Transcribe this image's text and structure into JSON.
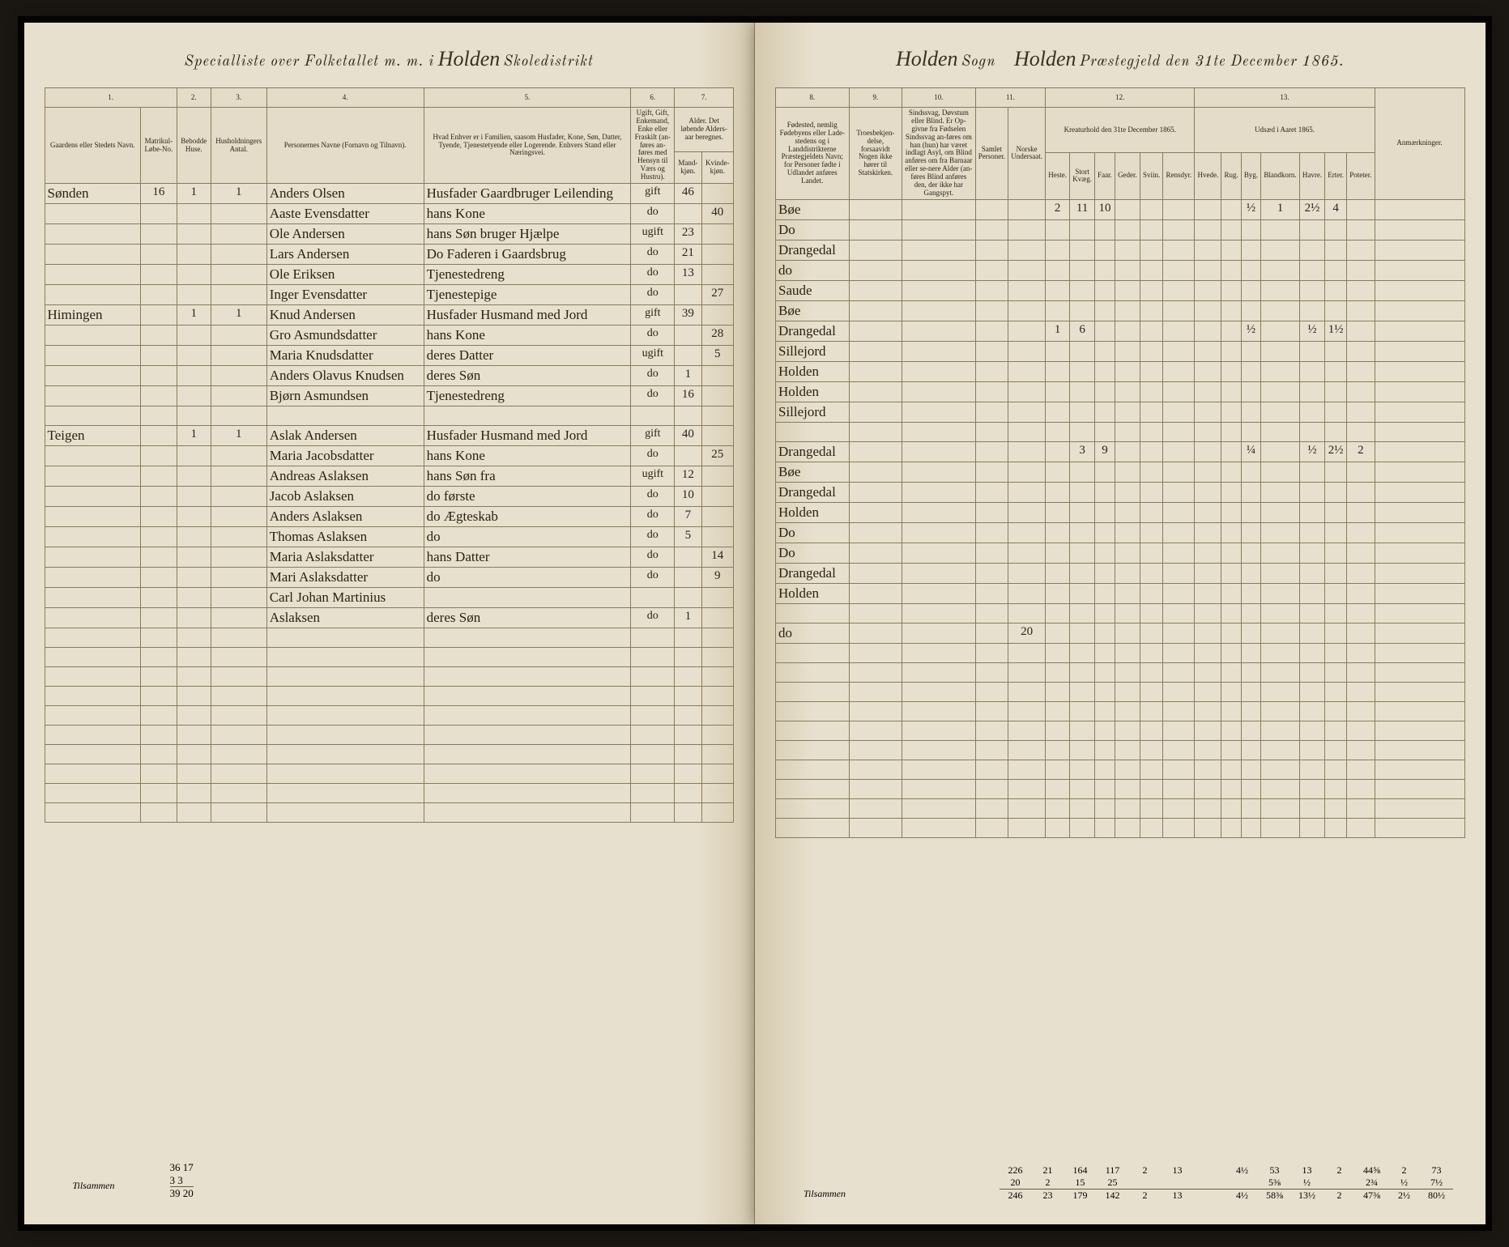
{
  "header": {
    "left_prefix": "Specialliste over Folketallet m. m. i",
    "left_district": "Holden",
    "left_suffix": "Skoledistrikt",
    "right_sogn": "Holden",
    "right_sogn_label": "Sogn",
    "right_gjeld": "Holden",
    "right_suffix": "Præstegjeld den 31te December 1865."
  },
  "columns_left": {
    "c1": "1.",
    "c2": "2.",
    "c3": "3.",
    "c4": "4.",
    "c5": "5.",
    "c6": "6.",
    "c7": "7.",
    "h1": "Gaardens eller Stedets Navn.",
    "h1b": "Matrikul-Løbe-No.",
    "h2": "Bebodde Huse.",
    "h3": "Husholdningers Antal.",
    "h4": "Personernes Navne (Fornavn og Tilnavn).",
    "h5": "Hvad Enhver er i Familien, saasom Husfader, Kone, Søn, Datter, Tyende, Tjenestetyende eller Logerende.\nEnhvers Stand eller Næringsvei.",
    "h6": "Ugift, Gift, Enkemand, Enke eller Fraskilt (an-føres an-føres med Hensyn til Værs og Hustru).",
    "h7a": "Alder. Det løbende Alders-aar beregnes.",
    "h7m": "Mand-kjøn.",
    "h7k": "Kvinde-kjøn."
  },
  "columns_right": {
    "c8": "8.",
    "c9": "9.",
    "c10": "10.",
    "c11": "11.",
    "c12": "12.",
    "c13": "13.",
    "h8": "Fødested, nemlig Fødebyens eller Lade-stedens og i Landdistrikterne Præstegjeldets Navn; for Personer fødte i Udlandet anføres Landet.",
    "h9": "Troesbekjen-delse, forsaavidt Nogen ikke hører til Statskirken.",
    "h10": "Sindssvag, Døvstum eller Blind. Er Op-givne fra Fødselen Sindssvag an-føres om han (hun) har været indlagt Asyl, om Blind anføres om fra Barnaar eller se-nere Alder (an-føres Blind anføres den, der ikke har Gangspyt.",
    "h11a": "Samlet Personer.",
    "h11b": "Norske Undersaat.",
    "h12": "Kreaturhold den 31te December 1865.",
    "h12_heste": "Heste.",
    "h12_kveg": "Stort Kvæg.",
    "h12_faar": "Faar.",
    "h12_geder": "Geder.",
    "h12_svin": "Sviin.",
    "h12_ren": "Rensdyr.",
    "h13": "Udsæd i Aaret 1865.",
    "h13_hvede": "Hvede.",
    "h13_rug": "Rug.",
    "h13_byg": "Byg.",
    "h13_bland": "Blandkorn.",
    "h13_havre": "Havre.",
    "h13_erter": "Erter.",
    "h13_poteter": "Poteter.",
    "h_anm": "Anmærkninger."
  },
  "rows": [
    {
      "farm": "Sønden",
      "mnr": "16",
      "hus": "1",
      "hh": "1",
      "name": "Anders Olsen",
      "role": "Husfader Gaardbruger Leilending",
      "civil": "gift",
      "age_m": "46",
      "age_k": "",
      "birthplace": "Bøe",
      "k1": "2",
      "k2": "11",
      "k3": "10",
      "u1": "",
      "u2": "½",
      "u3": "1",
      "u4": "2½",
      "u5": "4"
    },
    {
      "farm": "",
      "mnr": "",
      "hus": "",
      "hh": "",
      "name": "Aaste Evensdatter",
      "role": "hans Kone",
      "civil": "do",
      "age_m": "",
      "age_k": "40",
      "birthplace": "Do"
    },
    {
      "farm": "",
      "mnr": "",
      "hus": "",
      "hh": "",
      "name": "Ole Andersen",
      "role": "hans Søn bruger Hjælpe",
      "civil": "ugift",
      "age_m": "23",
      "age_k": "",
      "birthplace": "Drangedal"
    },
    {
      "farm": "",
      "mnr": "",
      "hus": "",
      "hh": "",
      "name": "Lars Andersen",
      "role": "Do   Faderen i Gaardsbrug",
      "civil": "do",
      "age_m": "21",
      "age_k": "",
      "birthplace": "do"
    },
    {
      "farm": "",
      "mnr": "",
      "hus": "",
      "hh": "",
      "name": "Ole Eriksen",
      "role": "Tjenestedreng",
      "civil": "do",
      "age_m": "13",
      "age_k": "",
      "birthplace": "Saude"
    },
    {
      "farm": "",
      "mnr": "",
      "hus": "",
      "hh": "",
      "name": "Inger Evensdatter",
      "role": "Tjenestepige",
      "civil": "do",
      "age_m": "",
      "age_k": "27",
      "birthplace": "Bøe"
    },
    {
      "farm": "Himingen",
      "mnr": "",
      "hus": "1",
      "hh": "1",
      "name": "Knud Andersen",
      "role": "Husfader Husmand med Jord",
      "civil": "gift",
      "age_m": "39",
      "age_k": "",
      "birthplace": "Drangedal",
      "k1": "1",
      "k2": "6",
      "u2": "½",
      "u3": "",
      "u4": "½",
      "u5": "1½"
    },
    {
      "farm": "",
      "mnr": "",
      "hus": "",
      "hh": "",
      "name": "Gro Asmundsdatter",
      "role": "hans Kone",
      "civil": "do",
      "age_m": "",
      "age_k": "28",
      "birthplace": "Sillejord"
    },
    {
      "farm": "",
      "mnr": "",
      "hus": "",
      "hh": "",
      "name": "Maria Knudsdatter",
      "role": "deres Datter",
      "civil": "ugift",
      "age_m": "",
      "age_k": "5",
      "birthplace": "Holden"
    },
    {
      "farm": "",
      "mnr": "",
      "hus": "",
      "hh": "",
      "name": "Anders Olavus Knudsen",
      "role": "deres Søn",
      "civil": "do",
      "age_m": "1",
      "age_k": "",
      "birthplace": "Holden"
    },
    {
      "farm": "",
      "mnr": "",
      "hus": "",
      "hh": "",
      "name": "Bjørn Asmundsen",
      "role": "Tjenestedreng",
      "civil": "do",
      "age_m": "16",
      "age_k": "",
      "birthplace": "Sillejord"
    },
    {
      "farm": "",
      "mnr": "",
      "hus": "",
      "hh": "",
      "name": "",
      "role": "",
      "civil": "",
      "age_m": "",
      "age_k": "",
      "birthplace": ""
    },
    {
      "farm": "Teigen",
      "mnr": "",
      "hus": "1",
      "hh": "1",
      "name": "Aslak Andersen",
      "role": "Husfader Husmand med Jord",
      "civil": "gift",
      "age_m": "40",
      "age_k": "",
      "birthplace": "Drangedal",
      "k1": "",
      "k2": "3",
      "k3": "9",
      "u2": "¼",
      "u3": "",
      "u4": "½",
      "u5": "2½",
      "u6": "2"
    },
    {
      "farm": "",
      "mnr": "",
      "hus": "",
      "hh": "",
      "name": "Maria Jacobsdatter",
      "role": "hans Kone",
      "civil": "do",
      "age_m": "",
      "age_k": "25",
      "birthplace": "Bøe"
    },
    {
      "farm": "",
      "mnr": "",
      "hus": "",
      "hh": "",
      "name": "Andreas Aslaksen",
      "role": "hans Søn   fra",
      "civil": "ugift",
      "age_m": "12",
      "age_k": "",
      "birthplace": "Drangedal"
    },
    {
      "farm": "",
      "mnr": "",
      "hus": "",
      "hh": "",
      "name": "Jacob Aslaksen",
      "role": "do      første",
      "civil": "do",
      "age_m": "10",
      "age_k": "",
      "birthplace": "Holden"
    },
    {
      "farm": "",
      "mnr": "",
      "hus": "",
      "hh": "",
      "name": "Anders Aslaksen",
      "role": "do      Ægteskab",
      "civil": "do",
      "age_m": "7",
      "age_k": "",
      "birthplace": "Do"
    },
    {
      "farm": "",
      "mnr": "",
      "hus": "",
      "hh": "",
      "name": "Thomas Aslaksen",
      "role": "do",
      "civil": "do",
      "age_m": "5",
      "age_k": "",
      "birthplace": "Do"
    },
    {
      "farm": "",
      "mnr": "",
      "hus": "",
      "hh": "",
      "name": "Maria Aslaksdatter",
      "role": "hans Datter",
      "civil": "do",
      "age_m": "",
      "age_k": "14",
      "birthplace": "Drangedal"
    },
    {
      "farm": "",
      "mnr": "",
      "hus": "",
      "hh": "",
      "name": "Mari Aslaksdatter",
      "role": "do",
      "civil": "do",
      "age_m": "",
      "age_k": "9",
      "birthplace": "Holden"
    },
    {
      "farm": "",
      "mnr": "",
      "hus": "",
      "hh": "",
      "name": "Carl Johan Martinius",
      "role": "",
      "civil": "",
      "age_m": "",
      "age_k": "",
      "birthplace": ""
    },
    {
      "farm": "",
      "mnr": "",
      "hus": "",
      "hh": "",
      "name": "Aslaksen",
      "role": "deres Søn",
      "civil": "do",
      "age_m": "1",
      "age_k": "",
      "birthplace": "do",
      "k1": "",
      "k2": "",
      "k3": "",
      "u1": "",
      "u2": "",
      "u3": "",
      "u4": "",
      "u5": "",
      "extra": "20"
    }
  ],
  "footer_left": {
    "label": "Tilsammen",
    "s1": "36 17",
    "s2": "3 3",
    "s3": "39 20"
  },
  "footer_right": {
    "label": "Tilsammen",
    "line1": [
      "226",
      "21",
      "164",
      "117",
      "2",
      "13",
      "",
      "4½",
      "53",
      "13",
      "2",
      "44⅝",
      "2",
      "73"
    ],
    "line2": [
      "20",
      "2",
      "15",
      "25",
      "",
      "",
      "",
      "",
      "5⅜",
      "½",
      "",
      "2¾",
      "½",
      "7½"
    ],
    "line3": [
      "246",
      "23",
      "179",
      "142",
      "2",
      "13",
      "",
      "4½",
      "58⅜",
      "13½",
      "2",
      "47⅜",
      "2½",
      "80½"
    ]
  },
  "styling": {
    "page_bg": "#e8e0ce",
    "rule_color": "#8a7a5a",
    "ink_color": "#2b2210",
    "print_color": "#2a2418",
    "header_font_size": 18,
    "cell_font_size": 12,
    "handwritten_font_size": 17
  }
}
